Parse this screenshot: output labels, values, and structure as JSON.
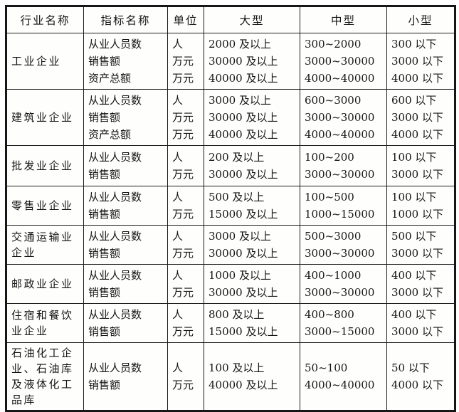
{
  "style": {
    "border_color": "#1c1c1c",
    "text_color": "#151515",
    "background_color": "#fefefd"
  },
  "table": {
    "headers": [
      "行业名称",
      "指标名称",
      "单位",
      "大型",
      "中型",
      "小型"
    ],
    "rows": [
      {
        "industry": [
          "工业企业"
        ],
        "indicators": [
          "从业人员数",
          "销售额",
          "资产总额"
        ],
        "units": [
          "人",
          "万元",
          "万元"
        ],
        "large": [
          "2000 及以上",
          "30000 及以上",
          "40000 及以上"
        ],
        "medium": [
          "300~2000",
          "3000~30000",
          "4000~40000"
        ],
        "small": [
          "300 以下",
          "3000 以下",
          "4000 以下"
        ]
      },
      {
        "industry": [
          "建筑业企业"
        ],
        "indicators": [
          "从业人员数",
          "销售额",
          "资产总额"
        ],
        "units": [
          "人",
          "万元",
          "万元"
        ],
        "large": [
          "3000 及以上",
          "30000 及以上",
          "40000 及以上"
        ],
        "medium": [
          "600~3000",
          "3000~30000",
          "4000~40000"
        ],
        "small": [
          "600 以下",
          "3000 以下",
          "4000 以下"
        ]
      },
      {
        "industry": [
          "批发业企业"
        ],
        "indicators": [
          "从业人员数",
          "销售额"
        ],
        "units": [
          "人",
          "万元"
        ],
        "large": [
          "200 及以上",
          "30000 及以上"
        ],
        "medium": [
          "100~200",
          "3000~30000"
        ],
        "small": [
          "100 以下",
          "3000 以下"
        ]
      },
      {
        "industry": [
          "零售业企业"
        ],
        "indicators": [
          "从业人员数",
          "销售额"
        ],
        "units": [
          "人",
          "万元"
        ],
        "large": [
          "500 及以上",
          "15000 及以上"
        ],
        "medium": [
          "100~500",
          "1000~15000"
        ],
        "small": [
          "100 以下",
          "1000 以下"
        ]
      },
      {
        "industry": [
          "交通运输业",
          "企业"
        ],
        "indicators": [
          "从业人员数",
          "销售额"
        ],
        "units": [
          "人",
          "万元"
        ],
        "large": [
          "3000 及以上",
          "30000 及以上"
        ],
        "medium": [
          "500~3000",
          "3000~30000"
        ],
        "small": [
          "500 以下",
          "3000 以下"
        ]
      },
      {
        "industry": [
          "邮政业企业"
        ],
        "indicators": [
          "从业人员数",
          "销售额"
        ],
        "units": [
          "人",
          "万元"
        ],
        "large": [
          "1000 及以上",
          "30000 及以上"
        ],
        "medium": [
          "400~1000",
          "3000~30000"
        ],
        "small": [
          "400 以下",
          "3000 以下"
        ]
      },
      {
        "industry": [
          "住宿和餐饮",
          "业企业"
        ],
        "indicators": [
          "从业人员数",
          "销售额"
        ],
        "units": [
          "人",
          "万元"
        ],
        "large": [
          "800 及以上",
          "15000 及以上"
        ],
        "medium": [
          "400~800",
          "3000~15000"
        ],
        "small": [
          "400 以下",
          "3000 以下"
        ]
      },
      {
        "industry": [
          "石油化工企",
          "业、石油库",
          "及液体化工",
          "品库"
        ],
        "indicators": [
          "从业人员数",
          "销售额"
        ],
        "units": [
          "人",
          "万元"
        ],
        "large": [
          "100 及以上",
          "40000 及以上"
        ],
        "medium": [
          "50~100",
          "4000~40000"
        ],
        "small": [
          "50 以下",
          "4000 以下"
        ]
      }
    ]
  }
}
